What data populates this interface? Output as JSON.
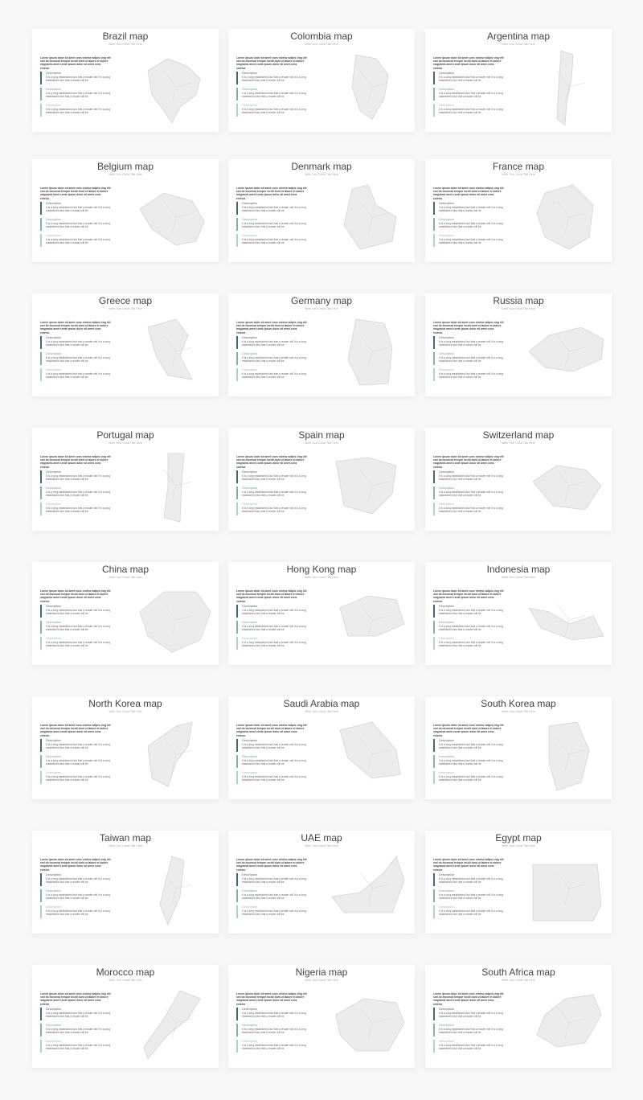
{
  "common": {
    "subtitle": "Write Your Great Title Here",
    "intro": "Lorem ipsum dolor sit amet cons ectetur adipis cing elit sed do eiusmod tempor incidi dunt ut labore et dolore magnanis amet conte ipsum dolor sit amet cons ectetur.",
    "items": [
      {
        "heading": "Description",
        "text": "It is a long established fact that a reader will It is a long established fact that a reader will be"
      },
      {
        "heading": "Description",
        "text": "It is a long established fact that a reader will It is a long established fact that a reader will be"
      },
      {
        "heading": "Description",
        "text": "It is a long established fact that a reader will It is a long established fact that a reader will be"
      }
    ],
    "colors": {
      "dark": "#3d6b78",
      "mid": "#7fb3b8",
      "light": "#a9d3d6",
      "map_fill": "#ececec",
      "map_stroke": "#d4d4d4"
    }
  },
  "cards": [
    {
      "title": "Brazil map",
      "map_icon": "brazil-map-icon"
    },
    {
      "title": "Colombia map",
      "map_icon": "colombia-map-icon"
    },
    {
      "title": "Argentina map",
      "map_icon": "argentina-map-icon"
    },
    {
      "title": "Belgium map",
      "map_icon": "belgium-map-icon"
    },
    {
      "title": "Denmark map",
      "map_icon": "denmark-map-icon"
    },
    {
      "title": "France map",
      "map_icon": "france-map-icon"
    },
    {
      "title": "Greece map",
      "map_icon": "greece-map-icon"
    },
    {
      "title": "Germany map",
      "map_icon": "germany-map-icon"
    },
    {
      "title": "Russia map",
      "map_icon": "russia-map-icon"
    },
    {
      "title": "Portugal map",
      "map_icon": "portugal-map-icon"
    },
    {
      "title": "Spain map",
      "map_icon": "spain-map-icon"
    },
    {
      "title": "Switzerland map",
      "map_icon": "switzerland-map-icon"
    },
    {
      "title": "China map",
      "map_icon": "china-map-icon"
    },
    {
      "title": "Hong Kong map",
      "map_icon": "hong-kong-map-icon"
    },
    {
      "title": "Indonesia map",
      "map_icon": "indonesia-map-icon"
    },
    {
      "title": "North Korea map",
      "map_icon": "north-korea-map-icon"
    },
    {
      "title": "Saudi Arabia map",
      "map_icon": "saudi-arabia-map-icon"
    },
    {
      "title": "South Korea map",
      "map_icon": "south-korea-map-icon"
    },
    {
      "title": "Taiwan map",
      "map_icon": "taiwan-map-icon"
    },
    {
      "title": "UAE map",
      "map_icon": "uae-map-icon"
    },
    {
      "title": "Egypt map",
      "map_icon": "egypt-map-icon"
    },
    {
      "title": "Morocco map",
      "map_icon": "morocco-map-icon"
    },
    {
      "title": "Nigeria map",
      "map_icon": "nigeria-map-icon"
    },
    {
      "title": "South Africa map",
      "map_icon": "south-africa-map-icon"
    }
  ]
}
